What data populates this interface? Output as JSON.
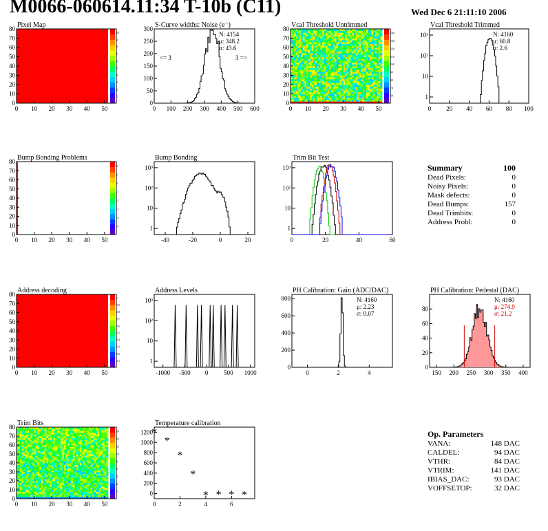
{
  "header": {
    "title": "M0066-060614.11:34 T-10b (C11)",
    "date": "Wed Dec  6 21:11:10 2006"
  },
  "colors": {
    "frame": "#000000",
    "map_red": "#ff0000",
    "green_curve": "#00cc00",
    "blue_curve": "#0000ee",
    "red_curve": "#cc0000",
    "pink_fill": "#ff9999",
    "stats_red": "#cc0000"
  },
  "palette": [
    "#5a00c8",
    "#3000ff",
    "#0040ff",
    "#0090ff",
    "#00d0ff",
    "#00ffc0",
    "#00ff60",
    "#40ff00",
    "#a0ff00",
    "#e8ff00",
    "#ffd000",
    "#ff9000",
    "#ff4000",
    "#ff0000"
  ],
  "summary": {
    "title": "Summary",
    "total": "100",
    "rows": [
      {
        "label": "Dead Pixels:",
        "value": "0"
      },
      {
        "label": "Noisy Pixels:",
        "value": "0"
      },
      {
        "label": "Mask defects:",
        "value": "0"
      },
      {
        "label": "Dead Bumps:",
        "value": "157"
      },
      {
        "label": "Dead Trimbits:",
        "value": "0"
      },
      {
        "label": "Address Probl:",
        "value": "0"
      }
    ]
  },
  "op_params": {
    "title": "Op. Parameters",
    "rows": [
      {
        "label": "VANA:",
        "value": "148 DAC"
      },
      {
        "label": "CALDEL:",
        "value": "94 DAC"
      },
      {
        "label": "VTHR:",
        "value": "84 DAC"
      },
      {
        "label": "VTRIM:",
        "value": "141 DAC"
      },
      {
        "label": "IBIAS_DAC:",
        "value": "93 DAC"
      },
      {
        "label": "VOFFSETOP:",
        "value": "32 DAC"
      }
    ]
  },
  "chart_data": [
    {
      "id": "pixel_map",
      "type": "heatmap",
      "title": "Pixel Map",
      "xlim": [
        0,
        52
      ],
      "ylim": [
        0,
        80
      ],
      "xticks": [
        "0",
        "10",
        "20",
        "30",
        "40",
        "50"
      ],
      "yticks": [
        "0",
        "10",
        "20",
        "30",
        "40",
        "50",
        "60",
        "70",
        "80"
      ],
      "fill": "uniform",
      "value": 10,
      "zlim": [
        0,
        10
      ],
      "zticks": [
        "1",
        "2",
        "3",
        "4",
        "5",
        "6",
        "7",
        "8",
        "9",
        "10"
      ]
    },
    {
      "id": "scurve_noise",
      "type": "line",
      "title": "S-Curve widths: Noise (e⁻)",
      "xlim": [
        0,
        600
      ],
      "ylim": [
        0,
        300
      ],
      "xticks": [
        "0",
        "100",
        "200",
        "300",
        "400",
        "500",
        "600"
      ],
      "yticks": [
        "0",
        "50",
        "100",
        "150",
        "200",
        "250",
        "300"
      ],
      "stats": [
        "N: 4154",
        "μ: 348.2",
        "σ: 43.6"
      ],
      "annotations": [
        "<= 3",
        "3 =>"
      ],
      "series": [
        {
          "name": "",
          "kind": "gauss",
          "mean": 348.2,
          "sigma": 43.6,
          "peak": 305,
          "color": "#000000"
        }
      ]
    },
    {
      "id": "vcal_untrimmed",
      "type": "heatmap",
      "title": "Vcal Threshold Untrimmed",
      "xlim": [
        0,
        52
      ],
      "ylim": [
        0,
        80
      ],
      "xticks": [
        "0",
        "10",
        "20",
        "30",
        "40",
        "50"
      ],
      "yticks": [
        "0",
        "10",
        "20",
        "30",
        "40",
        "50",
        "60",
        "70",
        "80"
      ],
      "fill": "noise",
      "mean": 0.52,
      "spread": 0.22,
      "zticks": [
        "60",
        "70",
        "80",
        "90",
        "100",
        "110",
        "120",
        "130",
        "140"
      ]
    },
    {
      "id": "vcal_trimmed",
      "type": "line",
      "title": "Vcal Threshold Trimmed",
      "xlim": [
        0,
        100
      ],
      "log": true,
      "ylog": [
        0.5,
        2000
      ],
      "xticks": [
        "0",
        "20",
        "40",
        "60",
        "80",
        "100"
      ],
      "stats": [
        "N: 4160",
        "μ: 60.8",
        "σ:  2.6"
      ],
      "series": [
        {
          "name": "",
          "kind": "gauss",
          "mean": 60.8,
          "sigma": 2.6,
          "peak": 700,
          "color": "#000000"
        }
      ]
    },
    {
      "id": "bump_problems",
      "type": "heatmap",
      "title": "Bump Bonding Problems",
      "xlim": [
        0,
        52
      ],
      "ylim": [
        0,
        80
      ],
      "xticks": [
        "0",
        "10",
        "20",
        "30",
        "40",
        "50"
      ],
      "yticks": [
        "0",
        "10",
        "20",
        "30",
        "40",
        "50",
        "60",
        "70",
        "80"
      ],
      "fill": "left_column",
      "zticks": [
        "-5",
        "-4",
        "-3",
        "-2",
        "-1",
        "0",
        "1",
        "2"
      ]
    },
    {
      "id": "bump_bonding",
      "type": "line",
      "title": "Bump Bonding",
      "xlim": [
        -48,
        25
      ],
      "log": true,
      "ylog": [
        0.5,
        2000
      ],
      "xticks": [
        "-40",
        "-20",
        "0",
        "20"
      ],
      "series": [
        {
          "name": "",
          "kind": "gauss",
          "mean": -14,
          "sigma": 5,
          "peak": 500,
          "color": "#000000"
        },
        {
          "name": "",
          "kind": "gauss",
          "mean": 0,
          "sigma": 2.5,
          "peak": 50,
          "color": "#000000"
        }
      ]
    },
    {
      "id": "trim_bit_test",
      "type": "line",
      "title": "Trim Bit Test",
      "xlim": [
        0,
        60
      ],
      "log": true,
      "ylog": [
        0.5,
        2000
      ],
      "xticks": [
        "0",
        "20",
        "40",
        "60"
      ],
      "series": [
        {
          "name": "",
          "kind": "gauss",
          "mean": 16.5,
          "sigma": 1.6,
          "peak": 1100,
          "color": "#00cc00"
        },
        {
          "name": "",
          "kind": "gauss",
          "mean": 19,
          "sigma": 1.8,
          "peak": 1300,
          "color": "#000000"
        },
        {
          "name": "",
          "kind": "gauss",
          "mean": 22.5,
          "sigma": 1.6,
          "peak": 1300,
          "color": "#cc0000"
        },
        {
          "name": "",
          "kind": "gauss",
          "mean": 23.5,
          "sigma": 1.8,
          "peak": 1300,
          "color": "#0000ee"
        }
      ]
    },
    {
      "id": "address_decoding",
      "type": "heatmap",
      "title": "Address decoding",
      "xlim": [
        0,
        52
      ],
      "ylim": [
        0,
        80
      ],
      "xticks": [
        "0",
        "10",
        "20",
        "30",
        "40",
        "50"
      ],
      "yticks": [
        "0",
        "10",
        "20",
        "30",
        "40",
        "50",
        "60",
        "70",
        "80"
      ],
      "fill": "uniform",
      "value": 1,
      "zlim": [
        0,
        1
      ],
      "zticks": [
        "0.1",
        "0.2",
        "0.3",
        "0.4",
        "0.5",
        "0.6",
        "0.7",
        "0.8",
        "0.9",
        "1"
      ]
    },
    {
      "id": "address_levels",
      "type": "bar",
      "title": "Address Levels",
      "xlim": [
        -1200,
        1100
      ],
      "log": true,
      "ylog": [
        0.5,
        2000
      ],
      "xticks": [
        "-1000",
        "-500",
        "0",
        "500",
        "1000"
      ],
      "peaks": [
        -720,
        -470,
        -210,
        -120,
        80,
        150,
        330,
        420,
        590,
        700
      ],
      "peak_values": [
        600,
        600,
        600,
        600,
        600,
        600,
        600,
        600,
        600,
        600
      ]
    },
    {
      "id": "ph_gain",
      "type": "line",
      "title": "PH Calibration: Gain (ADC/DAC)",
      "xlim": [
        -1,
        5.5
      ],
      "ylim": [
        0,
        850
      ],
      "xticks": [
        "0",
        "2",
        "4"
      ],
      "yticks": [
        "0",
        "200",
        "400",
        "600",
        "800"
      ],
      "stats": [
        "N: 4160",
        "μ: 2.23",
        "σ: 0.07"
      ],
      "series": [
        {
          "name": "",
          "kind": "gauss",
          "mean": 2.23,
          "sigma": 0.07,
          "peak": 800,
          "color": "#000000"
        }
      ]
    },
    {
      "id": "ph_pedestal",
      "type": "line",
      "title": "PH Calibration: Pedestal (DAC)",
      "xlim": [
        130,
        420
      ],
      "ylim": [
        0,
        100
      ],
      "xticks": [
        "150",
        "200",
        "250",
        "300",
        "350",
        "400"
      ],
      "yticks": [
        "0",
        "20",
        "40",
        "60",
        "80"
      ],
      "stats": [
        "N: 4160",
        "μ: 274.9",
        "σ: 21.2"
      ],
      "stats_colors": [
        "#000000",
        "#cc0000",
        "#cc0000"
      ],
      "cut_lines": [
        230,
        318
      ],
      "series": [
        {
          "name": "",
          "kind": "gauss",
          "mean": 274.9,
          "sigma": 21.2,
          "peak": 82,
          "color": "#000000"
        }
      ]
    },
    {
      "id": "trim_bits",
      "type": "heatmap",
      "title": "Trim Bits",
      "xlim": [
        0,
        52
      ],
      "ylim": [
        0,
        80
      ],
      "xticks": [
        "0",
        "10",
        "20",
        "30",
        "40",
        "50"
      ],
      "yticks": [
        "0",
        "10",
        "20",
        "30",
        "40",
        "50",
        "60",
        "70",
        "80"
      ],
      "fill": "trim",
      "zticks": [
        "0",
        "2",
        "4",
        "6",
        "8",
        "10",
        "12",
        "14",
        "16"
      ]
    },
    {
      "id": "temperature_calibration",
      "type": "scatter",
      "title": "Temperature calibration",
      "xlim": [
        0,
        7.8
      ],
      "ylim": [
        -100,
        1300
      ],
      "xticks": [
        "0",
        "2",
        "4",
        "6"
      ],
      "yticks": [
        "0",
        "200",
        "400",
        "600",
        "800",
        "1000",
        "1200"
      ],
      "x": [
        0,
        1,
        2,
        3,
        4,
        5,
        6,
        7
      ],
      "y": [
        1200,
        1030,
        750,
        380,
        -30,
        -20,
        -20,
        -25
      ]
    }
  ]
}
